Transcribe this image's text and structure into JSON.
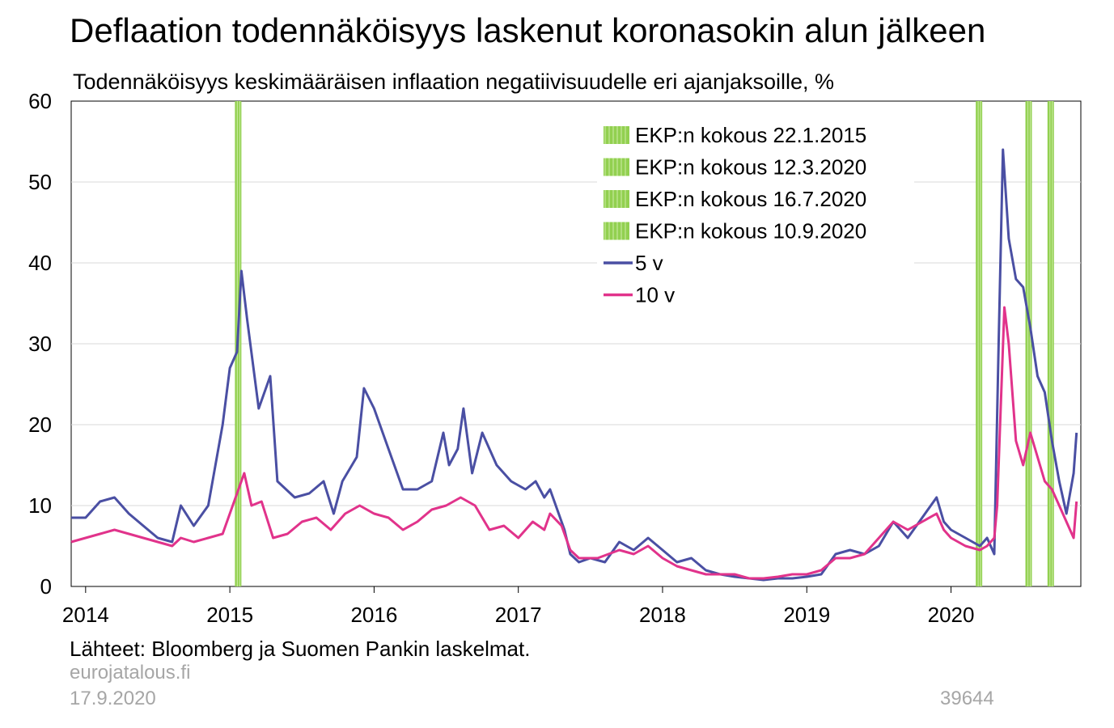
{
  "header": {
    "title": "Deflaation todennäköisyys laskenut koronasokin alun jälkeen",
    "subtitle": "Todennäköisyys keskimääräisen inflaation negatiivisuudelle eri ajanjaksoille, %"
  },
  "footer": {
    "source": "Lähteet: Bloomberg ja Suomen Pankin laskelmat.",
    "site": "eurojatalous.fi",
    "date": "17.9.2020",
    "code": "39644"
  },
  "colors": {
    "series_5v": "#4a4fa3",
    "series_10v": "#e1338b",
    "event_bar": "#92d050",
    "event_bar_stripe": "#c4e89a",
    "gridline": "#d9d9d9"
  },
  "chart_data": {
    "type": "line",
    "x_unit": "year",
    "xlim": [
      2013.9,
      2020.9
    ],
    "ylim": [
      0,
      60
    ],
    "yticks": [
      0,
      10,
      20,
      30,
      40,
      50,
      60
    ],
    "xticks": [
      {
        "x": 2014.0,
        "label": "2014"
      },
      {
        "x": 2015.0,
        "label": "2015"
      },
      {
        "x": 2016.0,
        "label": "2016"
      },
      {
        "x": 2017.0,
        "label": "2017"
      },
      {
        "x": 2018.0,
        "label": "2018"
      },
      {
        "x": 2019.0,
        "label": "2019"
      },
      {
        "x": 2020.0,
        "label": "2020"
      }
    ],
    "grid": "horizontal",
    "legend": "top-right",
    "events": [
      {
        "name": "EKP:n kokous 22.1.2015",
        "date": "2015-01-22"
      },
      {
        "name": "EKP:n kokous 12.3.2020",
        "date": "2020-03-12"
      },
      {
        "name": "EKP:n kokous 16.7.2020",
        "date": "2020-07-16"
      },
      {
        "name": "EKP:n kokous 10.9.2020",
        "date": "2020-09-10"
      }
    ],
    "series": [
      {
        "name": "5 v",
        "points": [
          [
            2013.9,
            8.5
          ],
          [
            2014.0,
            8.5
          ],
          [
            2014.1,
            10.5
          ],
          [
            2014.2,
            11.0
          ],
          [
            2014.3,
            9.0
          ],
          [
            2014.4,
            7.5
          ],
          [
            2014.5,
            6.0
          ],
          [
            2014.6,
            5.5
          ],
          [
            2014.66,
            10.0
          ],
          [
            2014.75,
            7.5
          ],
          [
            2014.85,
            10.0
          ],
          [
            2014.9,
            15.0
          ],
          [
            2014.95,
            20.0
          ],
          [
            2015.0,
            27.0
          ],
          [
            2015.05,
            29.0
          ],
          [
            2015.08,
            39.0
          ],
          [
            2015.12,
            33.0
          ],
          [
            2015.2,
            22.0
          ],
          [
            2015.28,
            26.0
          ],
          [
            2015.33,
            13.0
          ],
          [
            2015.45,
            11.0
          ],
          [
            2015.55,
            11.5
          ],
          [
            2015.65,
            13.0
          ],
          [
            2015.72,
            9.0
          ],
          [
            2015.78,
            13.0
          ],
          [
            2015.88,
            16.0
          ],
          [
            2015.93,
            24.5
          ],
          [
            2016.0,
            22.0
          ],
          [
            2016.1,
            17.0
          ],
          [
            2016.2,
            12.0
          ],
          [
            2016.3,
            12.0
          ],
          [
            2016.4,
            13.0
          ],
          [
            2016.48,
            19.0
          ],
          [
            2016.52,
            15.0
          ],
          [
            2016.58,
            17.0
          ],
          [
            2016.62,
            22.0
          ],
          [
            2016.68,
            14.0
          ],
          [
            2016.75,
            19.0
          ],
          [
            2016.85,
            15.0
          ],
          [
            2016.95,
            13.0
          ],
          [
            2017.05,
            12.0
          ],
          [
            2017.12,
            13.0
          ],
          [
            2017.18,
            11.0
          ],
          [
            2017.22,
            12.0
          ],
          [
            2017.32,
            7.0
          ],
          [
            2017.36,
            4.0
          ],
          [
            2017.42,
            3.0
          ],
          [
            2017.5,
            3.5
          ],
          [
            2017.6,
            3.0
          ],
          [
            2017.7,
            5.5
          ],
          [
            2017.8,
            4.5
          ],
          [
            2017.9,
            6.0
          ],
          [
            2018.0,
            4.5
          ],
          [
            2018.1,
            3.0
          ],
          [
            2018.2,
            3.5
          ],
          [
            2018.3,
            2.0
          ],
          [
            2018.4,
            1.5
          ],
          [
            2018.5,
            1.2
          ],
          [
            2018.6,
            1.0
          ],
          [
            2018.7,
            0.8
          ],
          [
            2018.8,
            1.0
          ],
          [
            2018.9,
            1.0
          ],
          [
            2019.0,
            1.2
          ],
          [
            2019.1,
            1.5
          ],
          [
            2019.2,
            4.0
          ],
          [
            2019.3,
            4.5
          ],
          [
            2019.4,
            4.0
          ],
          [
            2019.5,
            5.0
          ],
          [
            2019.6,
            8.0
          ],
          [
            2019.7,
            6.0
          ],
          [
            2019.8,
            8.5
          ],
          [
            2019.9,
            11.0
          ],
          [
            2019.95,
            8.0
          ],
          [
            2020.0,
            7.0
          ],
          [
            2020.1,
            6.0
          ],
          [
            2020.2,
            5.0
          ],
          [
            2020.25,
            6.0
          ],
          [
            2020.3,
            4.0
          ],
          [
            2020.33,
            30.0
          ],
          [
            2020.36,
            54.0
          ],
          [
            2020.4,
            43.0
          ],
          [
            2020.45,
            38.0
          ],
          [
            2020.5,
            37.0
          ],
          [
            2020.55,
            32.0
          ],
          [
            2020.6,
            26.0
          ],
          [
            2020.65,
            24.0
          ],
          [
            2020.7,
            18.0
          ],
          [
            2020.75,
            13.0
          ],
          [
            2020.8,
            9.0
          ],
          [
            2020.85,
            14.0
          ],
          [
            2020.87,
            19.0
          ]
        ]
      },
      {
        "name": "10 v",
        "points": [
          [
            2013.9,
            5.5
          ],
          [
            2014.0,
            6.0
          ],
          [
            2014.1,
            6.5
          ],
          [
            2014.2,
            7.0
          ],
          [
            2014.3,
            6.5
          ],
          [
            2014.4,
            6.0
          ],
          [
            2014.5,
            5.5
          ],
          [
            2014.6,
            5.0
          ],
          [
            2014.66,
            6.0
          ],
          [
            2014.75,
            5.5
          ],
          [
            2014.85,
            6.0
          ],
          [
            2014.95,
            6.5
          ],
          [
            2015.0,
            9.0
          ],
          [
            2015.05,
            11.5
          ],
          [
            2015.1,
            14.0
          ],
          [
            2015.15,
            10.0
          ],
          [
            2015.22,
            10.5
          ],
          [
            2015.3,
            6.0
          ],
          [
            2015.4,
            6.5
          ],
          [
            2015.5,
            8.0
          ],
          [
            2015.6,
            8.5
          ],
          [
            2015.7,
            7.0
          ],
          [
            2015.8,
            9.0
          ],
          [
            2015.9,
            10.0
          ],
          [
            2016.0,
            9.0
          ],
          [
            2016.1,
            8.5
          ],
          [
            2016.2,
            7.0
          ],
          [
            2016.3,
            8.0
          ],
          [
            2016.4,
            9.5
          ],
          [
            2016.5,
            10.0
          ],
          [
            2016.6,
            11.0
          ],
          [
            2016.7,
            10.0
          ],
          [
            2016.8,
            7.0
          ],
          [
            2016.9,
            7.5
          ],
          [
            2017.0,
            6.0
          ],
          [
            2017.1,
            8.0
          ],
          [
            2017.18,
            7.0
          ],
          [
            2017.22,
            9.0
          ],
          [
            2017.3,
            7.5
          ],
          [
            2017.36,
            4.5
          ],
          [
            2017.42,
            3.5
          ],
          [
            2017.55,
            3.5
          ],
          [
            2017.7,
            4.5
          ],
          [
            2017.8,
            4.0
          ],
          [
            2017.9,
            5.0
          ],
          [
            2018.0,
            3.5
          ],
          [
            2018.1,
            2.5
          ],
          [
            2018.2,
            2.0
          ],
          [
            2018.3,
            1.5
          ],
          [
            2018.4,
            1.5
          ],
          [
            2018.5,
            1.5
          ],
          [
            2018.6,
            1.0
          ],
          [
            2018.7,
            1.0
          ],
          [
            2018.8,
            1.2
          ],
          [
            2018.9,
            1.5
          ],
          [
            2019.0,
            1.5
          ],
          [
            2019.1,
            2.0
          ],
          [
            2019.2,
            3.5
          ],
          [
            2019.3,
            3.5
          ],
          [
            2019.4,
            4.0
          ],
          [
            2019.5,
            6.0
          ],
          [
            2019.6,
            8.0
          ],
          [
            2019.7,
            7.0
          ],
          [
            2019.8,
            8.0
          ],
          [
            2019.9,
            9.0
          ],
          [
            2019.95,
            7.0
          ],
          [
            2020.0,
            6.0
          ],
          [
            2020.1,
            5.0
          ],
          [
            2020.2,
            4.5
          ],
          [
            2020.25,
            5.0
          ],
          [
            2020.3,
            6.0
          ],
          [
            2020.32,
            10.0
          ],
          [
            2020.34,
            20.0
          ],
          [
            2020.37,
            34.5
          ],
          [
            2020.4,
            30.0
          ],
          [
            2020.45,
            18.0
          ],
          [
            2020.5,
            15.0
          ],
          [
            2020.55,
            19.0
          ],
          [
            2020.6,
            16.0
          ],
          [
            2020.65,
            13.0
          ],
          [
            2020.7,
            12.0
          ],
          [
            2020.75,
            10.0
          ],
          [
            2020.8,
            8.0
          ],
          [
            2020.85,
            6.0
          ],
          [
            2020.87,
            10.5
          ]
        ]
      }
    ]
  }
}
